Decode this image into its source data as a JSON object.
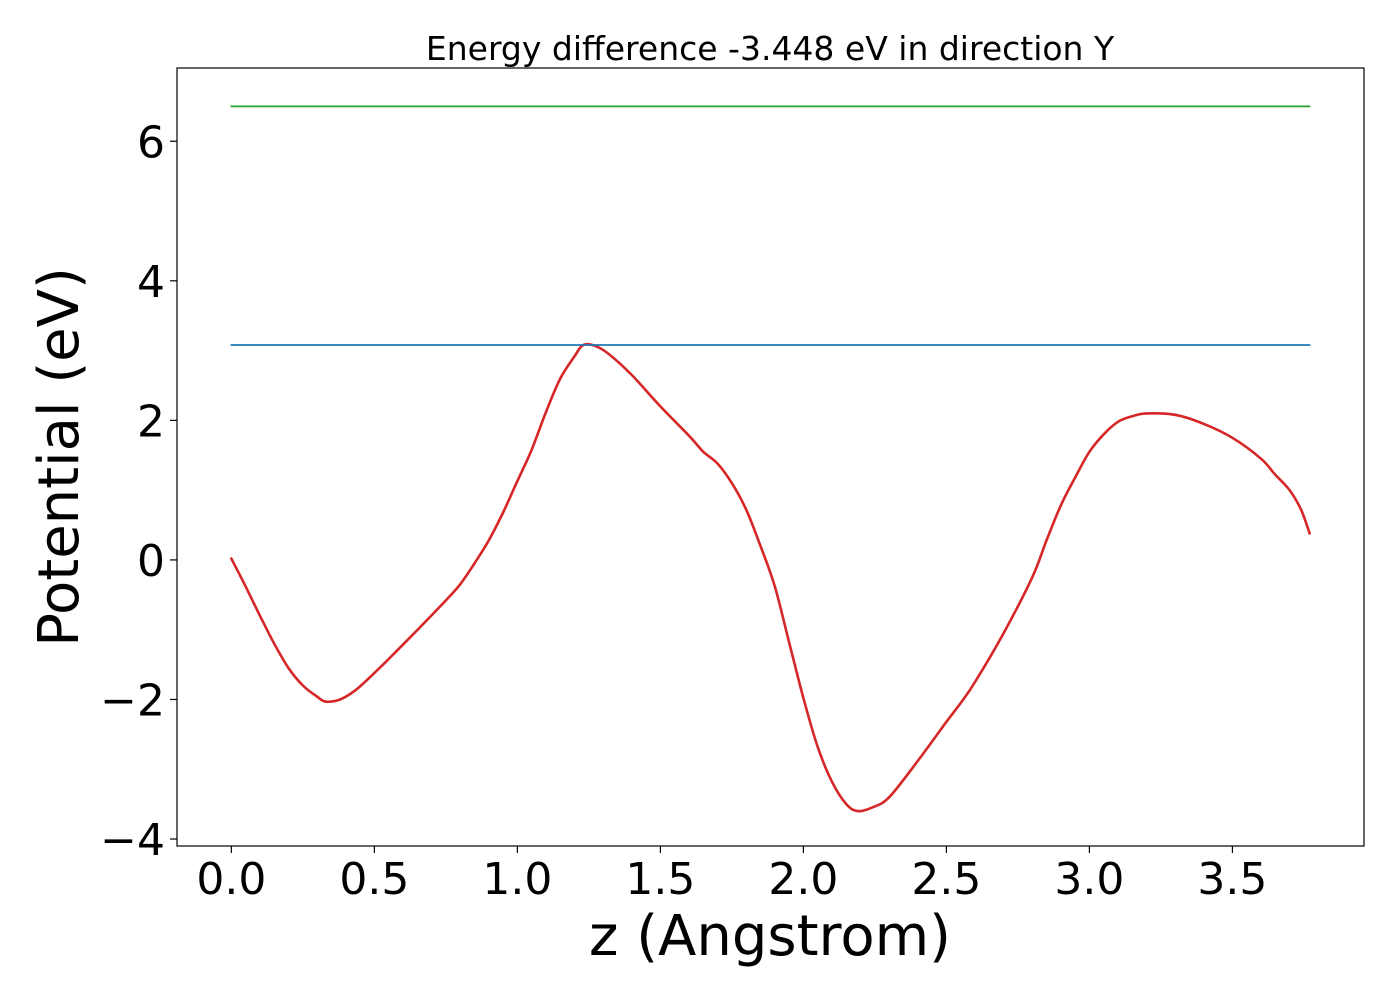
{
  "chart_data": {
    "type": "line",
    "title": "Energy difference -3.448 eV in direction Y",
    "xlabel": "z (Angstrom)",
    "ylabel": "Potential (eV)",
    "xlim": [
      -0.19,
      3.96
    ],
    "ylim": [
      -4.1,
      7.05
    ],
    "grid": false,
    "x_ticks": [
      0.0,
      0.5,
      1.0,
      1.5,
      2.0,
      2.5,
      3.0,
      3.5
    ],
    "x_tick_labels": [
      "0.0",
      "0.5",
      "1.0",
      "1.5",
      "2.0",
      "2.5",
      "3.0",
      "3.5"
    ],
    "y_ticks": [
      -4,
      -2,
      0,
      2,
      4,
      6
    ],
    "y_tick_labels": [
      "−4",
      "−2",
      "0",
      "2",
      "4",
      "6"
    ],
    "series": [
      {
        "color": "#d62728",
        "style": "curve",
        "x": [
          0.0,
          0.05,
          0.1,
          0.15,
          0.2,
          0.25,
          0.3,
          0.33,
          0.38,
          0.43,
          0.48,
          0.55,
          0.62,
          0.68,
          0.75,
          0.8,
          0.85,
          0.9,
          0.95,
          1.0,
          1.05,
          1.1,
          1.15,
          1.2,
          1.23,
          1.27,
          1.32,
          1.4,
          1.5,
          1.6,
          1.65,
          1.7,
          1.75,
          1.8,
          1.85,
          1.9,
          1.95,
          2.0,
          2.05,
          2.1,
          2.15,
          2.19,
          2.24,
          2.3,
          2.4,
          2.5,
          2.55,
          2.6,
          2.7,
          2.8,
          2.85,
          2.9,
          2.95,
          3.0,
          3.05,
          3.1,
          3.15,
          3.2,
          3.3,
          3.4,
          3.5,
          3.6,
          3.65,
          3.7,
          3.74,
          3.77
        ],
        "y": [
          0.02,
          -0.38,
          -0.8,
          -1.2,
          -1.55,
          -1.8,
          -1.96,
          -2.03,
          -2.0,
          -1.88,
          -1.7,
          -1.42,
          -1.13,
          -0.88,
          -0.58,
          -0.35,
          -0.05,
          0.28,
          0.68,
          1.13,
          1.58,
          2.12,
          2.6,
          2.92,
          3.08,
          3.07,
          2.95,
          2.65,
          2.2,
          1.78,
          1.55,
          1.38,
          1.1,
          0.72,
          0.2,
          -0.38,
          -1.18,
          -1.98,
          -2.68,
          -3.18,
          -3.5,
          -3.6,
          -3.55,
          -3.4,
          -2.88,
          -2.32,
          -2.05,
          -1.75,
          -1.05,
          -0.25,
          0.28,
          0.78,
          1.18,
          1.55,
          1.8,
          1.98,
          2.06,
          2.1,
          2.08,
          1.95,
          1.75,
          1.45,
          1.22,
          1.0,
          0.72,
          0.38
        ]
      },
      {
        "color": "#1f77b4",
        "style": "hline",
        "x": [
          0.0,
          3.77
        ],
        "y": [
          3.08,
          3.08
        ]
      },
      {
        "color": "#2ca02c",
        "style": "hline",
        "x": [
          0.0,
          3.77
        ],
        "y": [
          6.5,
          6.5
        ]
      }
    ]
  }
}
